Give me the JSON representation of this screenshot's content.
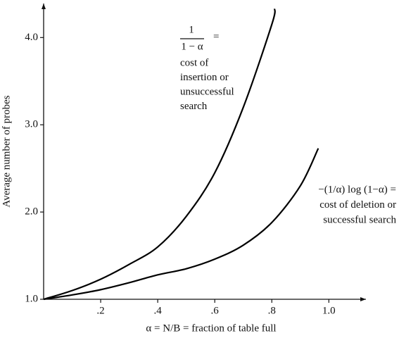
{
  "chart_data": {
    "type": "line",
    "x_label": "α = N/B = fraction of table full",
    "y_label": "Average number of probes",
    "xlim": [
      0,
      1.13
    ],
    "ylim": [
      1.0,
      4.39
    ],
    "xticks": [
      {
        "value": 0.2,
        "label": ".2"
      },
      {
        "value": 0.4,
        "label": ".4"
      },
      {
        "value": 0.6,
        "label": ".6"
      },
      {
        "value": 0.8,
        "label": ".8"
      },
      {
        "value": 1.0,
        "label": "1.0"
      }
    ],
    "yticks": [
      {
        "value": 1,
        "label": "1.0"
      },
      {
        "value": 2,
        "label": "2.0"
      },
      {
        "value": 3,
        "label": "3.0"
      },
      {
        "value": 4,
        "label": "4.0"
      }
    ],
    "series": [
      {
        "color": "#000000",
        "x": [
          0,
          0.1,
          0.2,
          0.3,
          0.4,
          0.5,
          0.6,
          0.7,
          0.8,
          0.81
        ],
        "values": [
          1.0,
          1.1,
          1.23,
          1.4,
          1.6,
          1.95,
          2.45,
          3.2,
          4.15,
          4.33
        ]
      },
      {
        "color": "#000000",
        "x": [
          0,
          0.1,
          0.2,
          0.3,
          0.4,
          0.5,
          0.6,
          0.7,
          0.8,
          0.9,
          0.963
        ],
        "values": [
          1.0,
          1.05,
          1.11,
          1.19,
          1.28,
          1.35,
          1.46,
          1.62,
          1.88,
          2.3,
          2.73
        ]
      }
    ],
    "annotations": [
      {
        "numerator": "1",
        "denominator": "1 − α",
        "suffix": "=",
        "lines": [
          "cost of",
          "insertion or",
          "unsuccessful",
          "search"
        ]
      },
      {
        "lines": [
          "−(1/α) log (1−α) =",
          "cost of deletion or",
          "successful search"
        ]
      }
    ]
  }
}
